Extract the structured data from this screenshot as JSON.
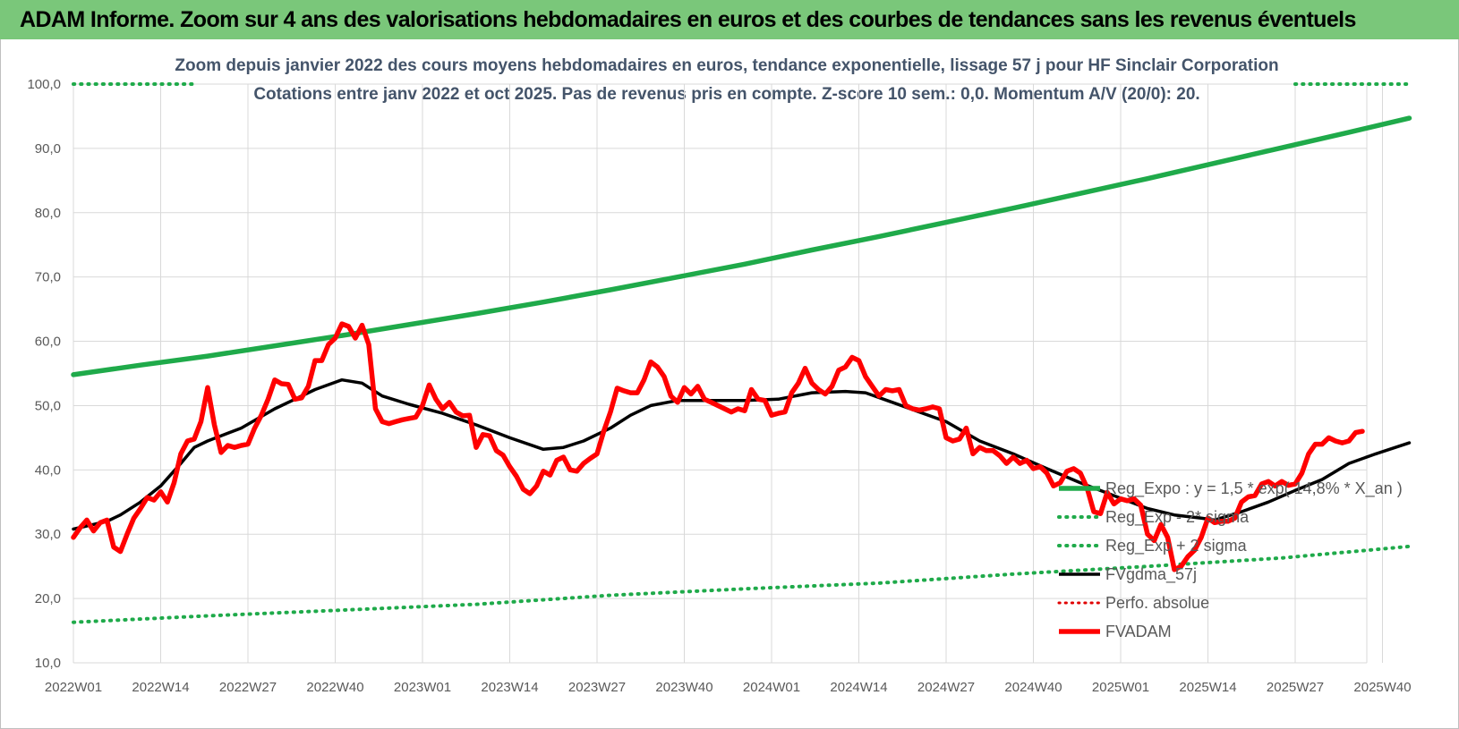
{
  "banner": {
    "title": "ADAM Informe. Zoom sur 4 ans des valorisations hebdomadaires en euros et des courbes de tendances sans les revenus éventuels",
    "color": "#7ac77a"
  },
  "chart_data": {
    "type": "line",
    "title_line1": "Zoom depuis janvier 2022 des cours moyens hebdomadaires en euros, tendance exponentielle, lissage 57 j pour HF Sinclair Corporation",
    "title_line2": "Cotations entre janv 2022 et oct 2025. Pas de revenus pris en compte. Z-score 10 sem.: 0,0. Momentum A/V (20/0): 20.",
    "xlabel": "",
    "ylabel": "",
    "ylim": [
      10,
      100
    ],
    "yticks": [
      "10,0",
      "20,0",
      "30,0",
      "40,0",
      "50,0",
      "60,0",
      "70,0",
      "80,0",
      "90,0",
      "100,0"
    ],
    "x_tick_labels": [
      "2022W01",
      "2022W14",
      "2022W27",
      "2022W40",
      "2023W01",
      "2023W14",
      "2023W27",
      "2023W40",
      "2024W01",
      "2024W14",
      "2024W27",
      "2024W40",
      "2025W01",
      "2025W14",
      "2025W27",
      "2025W40"
    ],
    "x_tick_weeks": [
      0,
      13,
      26,
      39,
      52,
      65,
      78,
      91,
      104,
      117,
      130,
      143,
      156,
      169,
      182,
      195
    ],
    "total_weeks": 200,
    "grid": true,
    "legend_position": "right",
    "colors": {
      "reg_expo": "#1faa4a",
      "band": "#1faa4a",
      "smoothed": "#000000",
      "perfo": "#e00000",
      "price": "#ff0000"
    },
    "series": [
      {
        "key": "reg_expo",
        "name": "Reg_Expo : y = 1,5 * exp( 14,8% * X_an )",
        "style": "solid-thick",
        "points": [
          [
            0,
            54.8
          ],
          [
            10,
            56.3
          ],
          [
            20,
            57.7
          ],
          [
            30,
            59.3
          ],
          [
            40,
            60.9
          ],
          [
            50,
            62.6
          ],
          [
            60,
            64.3
          ],
          [
            70,
            66.1
          ],
          [
            80,
            68
          ],
          [
            90,
            70
          ],
          [
            100,
            72
          ],
          [
            110,
            74.2
          ],
          [
            120,
            76.3
          ],
          [
            130,
            78.5
          ],
          [
            140,
            80.7
          ],
          [
            150,
            83
          ],
          [
            160,
            85.3
          ],
          [
            170,
            87.7
          ],
          [
            180,
            90.1
          ],
          [
            190,
            92.5
          ],
          [
            199,
            94.7
          ]
        ]
      },
      {
        "key": "band_minus",
        "name": "Reg_Exp - 2* sigma",
        "style": "dotted",
        "points": [
          [
            0,
            16.3
          ],
          [
            20,
            17.3
          ],
          [
            40,
            18.2
          ],
          [
            60,
            19.1
          ],
          [
            80,
            20.5
          ],
          [
            100,
            21.5
          ],
          [
            120,
            22.4
          ],
          [
            140,
            23.8
          ],
          [
            160,
            25
          ],
          [
            180,
            26.3
          ],
          [
            199,
            28.1
          ]
        ]
      },
      {
        "key": "band_plus",
        "name": "Reg_Exp + 2 sigma",
        "style": "dotted",
        "points": [
          [
            0,
            100
          ],
          [
            18,
            100
          ],
          [
            182,
            100
          ],
          [
            199,
            100
          ]
        ]
      },
      {
        "key": "smoothed",
        "name": "FVgdma_57j",
        "style": "solid",
        "points": [
          [
            0,
            30.8
          ],
          [
            5,
            32
          ],
          [
            7,
            33
          ],
          [
            10,
            35
          ],
          [
            13,
            37.5
          ],
          [
            16,
            41
          ],
          [
            18,
            43.5
          ],
          [
            20,
            44.5
          ],
          [
            25,
            46.5
          ],
          [
            30,
            49.5
          ],
          [
            33,
            51
          ],
          [
            36,
            52.5
          ],
          [
            40,
            54
          ],
          [
            43,
            53.5
          ],
          [
            46,
            51.5
          ],
          [
            50,
            50.2
          ],
          [
            55,
            48.8
          ],
          [
            60,
            47
          ],
          [
            65,
            45
          ],
          [
            70,
            43.2
          ],
          [
            73,
            43.5
          ],
          [
            76,
            44.5
          ],
          [
            80,
            46.5
          ],
          [
            83,
            48.5
          ],
          [
            86,
            50
          ],
          [
            90,
            50.8
          ],
          [
            95,
            50.8
          ],
          [
            100,
            50.8
          ],
          [
            105,
            51
          ],
          [
            110,
            52
          ],
          [
            115,
            52.2
          ],
          [
            118,
            52
          ],
          [
            122,
            50.5
          ],
          [
            126,
            49
          ],
          [
            130,
            47.5
          ],
          [
            135,
            44.5
          ],
          [
            140,
            42.5
          ],
          [
            145,
            40.2
          ],
          [
            150,
            38
          ],
          [
            155,
            36
          ],
          [
            160,
            34
          ],
          [
            164,
            33
          ],
          [
            168,
            32.5
          ],
          [
            170,
            32.2
          ],
          [
            174,
            33.5
          ],
          [
            178,
            35
          ],
          [
            182,
            36.8
          ],
          [
            186,
            38.5
          ],
          [
            190,
            41
          ],
          [
            194,
            42.5
          ],
          [
            199,
            44.2
          ]
        ]
      },
      {
        "key": "perfo",
        "name": "Perfo. absolue",
        "style": "dotted-red",
        "points": []
      },
      {
        "key": "price",
        "name": "FVADAM",
        "style": "solid-thick",
        "points": [
          [
            0,
            29.5
          ],
          [
            1,
            31
          ],
          [
            2,
            32.2
          ],
          [
            3,
            30.5
          ],
          [
            4,
            31.8
          ],
          [
            5,
            32.2
          ],
          [
            6,
            28
          ],
          [
            7,
            27.3
          ],
          [
            8,
            30
          ],
          [
            9,
            32.5
          ],
          [
            10,
            34
          ],
          [
            11,
            35.7
          ],
          [
            12,
            35.3
          ],
          [
            13,
            36.6
          ],
          [
            14,
            35
          ],
          [
            15,
            38
          ],
          [
            16,
            42.5
          ],
          [
            17,
            44.5
          ],
          [
            18,
            44.8
          ],
          [
            19,
            47.5
          ],
          [
            20,
            52.8
          ],
          [
            21,
            47
          ],
          [
            22,
            42.7
          ],
          [
            23,
            43.8
          ],
          [
            24,
            43.5
          ],
          [
            25,
            43.8
          ],
          [
            26,
            44
          ],
          [
            27,
            46.5
          ],
          [
            28,
            48.5
          ],
          [
            29,
            51
          ],
          [
            30,
            54
          ],
          [
            31,
            53.4
          ],
          [
            32,
            53.3
          ],
          [
            33,
            51
          ],
          [
            34,
            51.2
          ],
          [
            35,
            53
          ],
          [
            36,
            57
          ],
          [
            37,
            57
          ],
          [
            38,
            59.5
          ],
          [
            39,
            60.5
          ],
          [
            40,
            62.7
          ],
          [
            41,
            62.3
          ],
          [
            42,
            60.5
          ],
          [
            43,
            62.5
          ],
          [
            44,
            59.5
          ],
          [
            45,
            49.5
          ],
          [
            46,
            47.5
          ],
          [
            47,
            47.2
          ],
          [
            48,
            47.5
          ],
          [
            49,
            47.8
          ],
          [
            50,
            48
          ],
          [
            51,
            48.2
          ],
          [
            52,
            50
          ],
          [
            53,
            53.2
          ],
          [
            54,
            51
          ],
          [
            55,
            49.5
          ],
          [
            56,
            50.5
          ],
          [
            57,
            49
          ],
          [
            58,
            48.4
          ],
          [
            59,
            48.5
          ],
          [
            60,
            43.5
          ],
          [
            61,
            45.5
          ],
          [
            62,
            45.3
          ],
          [
            63,
            43
          ],
          [
            64,
            42.3
          ],
          [
            65,
            40.5
          ],
          [
            66,
            39
          ],
          [
            67,
            37
          ],
          [
            68,
            36.3
          ],
          [
            69,
            37.5
          ],
          [
            70,
            39.8
          ],
          [
            71,
            39.2
          ],
          [
            72,
            41.5
          ],
          [
            73,
            42
          ],
          [
            74,
            40
          ],
          [
            75,
            39.8
          ],
          [
            76,
            41
          ],
          [
            77,
            41.8
          ],
          [
            78,
            42.5
          ],
          [
            79,
            46
          ],
          [
            80,
            49
          ],
          [
            81,
            52.7
          ],
          [
            82,
            52.3
          ],
          [
            83,
            52
          ],
          [
            84,
            52
          ],
          [
            85,
            54
          ],
          [
            86,
            56.8
          ],
          [
            87,
            56
          ],
          [
            88,
            54.5
          ],
          [
            89,
            51.5
          ],
          [
            90,
            50.5
          ],
          [
            91,
            52.8
          ],
          [
            92,
            51.8
          ],
          [
            93,
            53
          ],
          [
            94,
            51
          ],
          [
            95,
            50.5
          ],
          [
            96,
            50
          ],
          [
            97,
            49.5
          ],
          [
            98,
            49
          ],
          [
            99,
            49.5
          ],
          [
            100,
            49.2
          ],
          [
            101,
            52.5
          ],
          [
            102,
            51
          ],
          [
            103,
            50.8
          ],
          [
            104,
            48.5
          ],
          [
            105,
            48.8
          ],
          [
            106,
            49
          ],
          [
            107,
            52
          ],
          [
            108,
            53.5
          ],
          [
            109,
            55.8
          ],
          [
            110,
            53.5
          ],
          [
            111,
            52.5
          ],
          [
            112,
            51.8
          ],
          [
            113,
            53
          ],
          [
            114,
            55.5
          ],
          [
            115,
            56
          ],
          [
            116,
            57.5
          ],
          [
            117,
            57
          ],
          [
            118,
            54.5
          ],
          [
            119,
            53
          ],
          [
            120,
            51.5
          ],
          [
            121,
            52.5
          ],
          [
            122,
            52.3
          ],
          [
            123,
            52.5
          ],
          [
            124,
            50
          ],
          [
            125,
            49.5
          ],
          [
            126,
            49.3
          ],
          [
            127,
            49.5
          ],
          [
            128,
            49.8
          ],
          [
            129,
            49.5
          ],
          [
            130,
            45
          ],
          [
            131,
            44.5
          ],
          [
            132,
            44.8
          ],
          [
            133,
            46.5
          ],
          [
            134,
            42.5
          ],
          [
            135,
            43.5
          ],
          [
            136,
            43
          ],
          [
            137,
            43
          ],
          [
            138,
            42.2
          ],
          [
            139,
            41
          ],
          [
            140,
            42
          ],
          [
            141,
            41
          ],
          [
            142,
            41.5
          ],
          [
            143,
            40.2
          ],
          [
            144,
            40.5
          ],
          [
            145,
            39.5
          ],
          [
            146,
            37.5
          ],
          [
            147,
            38
          ],
          [
            148,
            39.8
          ],
          [
            149,
            40.2
          ],
          [
            150,
            39.5
          ],
          [
            151,
            37.2
          ],
          [
            152,
            33.5
          ],
          [
            153,
            33.2
          ],
          [
            154,
            36.5
          ],
          [
            155,
            34.7
          ],
          [
            156,
            35.5
          ],
          [
            157,
            35.2
          ],
          [
            158,
            35.5
          ],
          [
            159,
            34.5
          ],
          [
            160,
            30
          ],
          [
            161,
            29
          ],
          [
            162,
            31.5
          ],
          [
            163,
            29.5
          ],
          [
            164,
            24.5
          ],
          [
            165,
            25
          ],
          [
            166,
            26.5
          ],
          [
            167,
            27.5
          ],
          [
            168,
            29.5
          ],
          [
            169,
            32.5
          ],
          [
            170,
            31.8
          ],
          [
            171,
            32
          ],
          [
            172,
            32
          ],
          [
            173,
            32.5
          ],
          [
            174,
            35
          ],
          [
            175,
            35.8
          ],
          [
            176,
            36
          ],
          [
            177,
            37.8
          ],
          [
            178,
            38.2
          ],
          [
            179,
            37.5
          ],
          [
            180,
            38.2
          ],
          [
            181,
            37.6
          ],
          [
            182,
            37.8
          ],
          [
            183,
            39.5
          ],
          [
            184,
            42.5
          ],
          [
            185,
            44
          ],
          [
            186,
            44
          ],
          [
            187,
            45
          ],
          [
            188,
            44.5
          ],
          [
            189,
            44.2
          ],
          [
            190,
            44.5
          ],
          [
            191,
            45.8
          ],
          [
            192,
            46
          ]
        ]
      }
    ]
  }
}
